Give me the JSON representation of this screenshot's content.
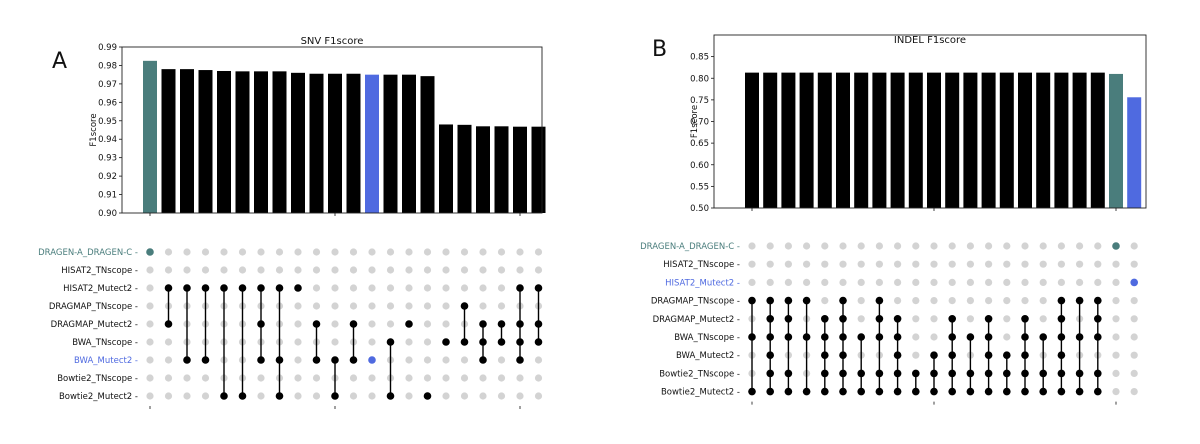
{
  "colors": {
    "bar_default": "#000000",
    "dragen_highlight": "#4a7d7c",
    "hisat_highlight": "#4f6ae0",
    "bwa_highlight": "#4f6ae0",
    "dot_inactive": "#d3d3d3",
    "dot_active": "#000000",
    "label_default": "#111111"
  },
  "chart_data": [
    {
      "panel": "A",
      "type": "bar",
      "title": "SNV F1score",
      "ylabel": "F1score",
      "ylim": [
        0.9,
        0.99
      ],
      "yticks": [
        "0.90",
        "0.91",
        "0.92",
        "0.93",
        "0.94",
        "0.95",
        "0.96",
        "0.97",
        "0.98",
        "0.99"
      ],
      "values": [
        0.9825,
        0.978,
        0.978,
        0.9775,
        0.977,
        0.9768,
        0.9768,
        0.9768,
        0.976,
        0.9755,
        0.9755,
        0.9755,
        0.975,
        0.975,
        0.975,
        0.9742,
        0.948,
        0.9478,
        0.947,
        0.947,
        0.9468,
        0.9468
      ],
      "bar_colors": [
        "dragen",
        "default",
        "default",
        "default",
        "default",
        "default",
        "default",
        "default",
        "default",
        "default",
        "default",
        "default",
        "highlight",
        "default",
        "default",
        "default",
        "default",
        "default",
        "default",
        "default",
        "default",
        "default"
      ],
      "rows": [
        "DRAGEN-A_DRAGEN-C",
        "HISAT2_TNscope",
        "HISAT2_Mutect2",
        "DRAGMAP_TNscope",
        "DRAGMAP_Mutect2",
        "BWA_TNscope",
        "BWA_Mutect2",
        "Bowtie2_TNscope",
        "Bowtie2_Mutect2"
      ],
      "row_colors": [
        "dragen",
        "default",
        "default",
        "default",
        "default",
        "default",
        "highlight",
        "default",
        "default"
      ],
      "memberships": [
        [
          0
        ],
        [
          2,
          4
        ],
        [
          2,
          6
        ],
        [
          2,
          6
        ],
        [
          2,
          8
        ],
        [
          2,
          8
        ],
        [
          2,
          4,
          6
        ],
        [
          2,
          6,
          8
        ],
        [
          2
        ],
        [
          4,
          6
        ],
        [
          6,
          8
        ],
        [
          4,
          6
        ],
        [
          6
        ],
        [
          5,
          8
        ],
        [
          4
        ],
        [
          8
        ],
        [
          5
        ],
        [
          3,
          5
        ],
        [
          4,
          5,
          6
        ],
        [
          4,
          5
        ],
        [
          2,
          4,
          5,
          6
        ],
        [
          2,
          4,
          5
        ]
      ],
      "active_colors": [
        "dragen",
        "default",
        "default",
        "default",
        "default",
        "default",
        "default",
        "default",
        "default",
        "default",
        "default",
        "default",
        "highlight",
        "default",
        "default",
        "default",
        "default",
        "default",
        "default",
        "default",
        "default",
        "default"
      ]
    },
    {
      "panel": "B",
      "type": "bar",
      "title": "INDEL F1score",
      "ylabel": "F1score",
      "ylim": [
        0.5,
        0.9
      ],
      "yticks": [
        "0.50",
        "0.55",
        "0.60",
        "0.65",
        "0.70",
        "0.75",
        "0.80",
        "0.85"
      ],
      "values": [
        0.813,
        0.813,
        0.813,
        0.813,
        0.813,
        0.813,
        0.813,
        0.813,
        0.813,
        0.813,
        0.813,
        0.813,
        0.813,
        0.813,
        0.813,
        0.813,
        0.813,
        0.813,
        0.813,
        0.813,
        0.81,
        0.756
      ],
      "bar_colors": [
        "default",
        "default",
        "default",
        "default",
        "default",
        "default",
        "default",
        "default",
        "default",
        "default",
        "default",
        "default",
        "default",
        "default",
        "default",
        "default",
        "default",
        "default",
        "default",
        "default",
        "dragen",
        "highlight"
      ],
      "rows": [
        "DRAGEN-A_DRAGEN-C",
        "HISAT2_TNscope",
        "HISAT2_Mutect2",
        "DRAGMAP_TNscope",
        "DRAGMAP_Mutect2",
        "BWA_TNscope",
        "BWA_Mutect2",
        "Bowtie2_TNscope",
        "Bowtie2_Mutect2"
      ],
      "row_colors": [
        "dragen",
        "default",
        "highlight",
        "default",
        "default",
        "default",
        "default",
        "default",
        "default"
      ],
      "memberships": [
        [
          3,
          5,
          8
        ],
        [
          3,
          4,
          5,
          6,
          7,
          8
        ],
        [
          3,
          4,
          5,
          7,
          8
        ],
        [
          3,
          5,
          8
        ],
        [
          4,
          5,
          6,
          7,
          8
        ],
        [
          3,
          4,
          5,
          6,
          7,
          8
        ],
        [
          5,
          7,
          8
        ],
        [
          3,
          4,
          5,
          7,
          8
        ],
        [
          4,
          5,
          6,
          7,
          8
        ],
        [
          7,
          8
        ],
        [
          6,
          7,
          8
        ],
        [
          4,
          5,
          6,
          7,
          8
        ],
        [
          5,
          7,
          8
        ],
        [
          4,
          5,
          6,
          7,
          8
        ],
        [
          6,
          7,
          8
        ],
        [
          4,
          5,
          6,
          7,
          8
        ],
        [
          5,
          7,
          8
        ],
        [
          3,
          4,
          5,
          6,
          7,
          8
        ],
        [
          3,
          5,
          7,
          8
        ],
        [
          3,
          4,
          5,
          7,
          8
        ],
        [
          0
        ],
        [
          2
        ]
      ],
      "active_colors": [
        "default",
        "default",
        "default",
        "default",
        "default",
        "default",
        "default",
        "default",
        "default",
        "default",
        "default",
        "default",
        "default",
        "default",
        "default",
        "default",
        "default",
        "default",
        "default",
        "default",
        "dragen",
        "highlight"
      ]
    }
  ]
}
